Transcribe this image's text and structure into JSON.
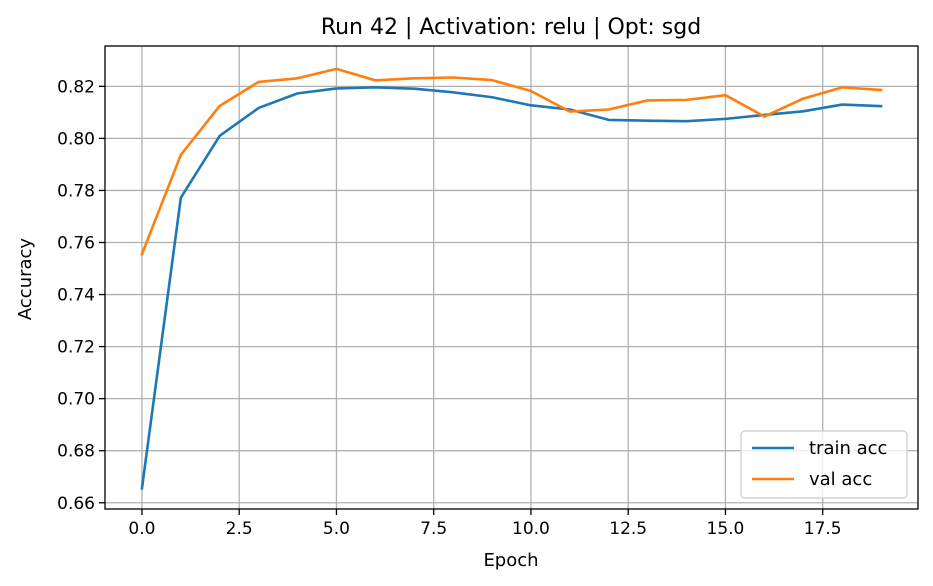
{
  "chart_data": {
    "type": "line",
    "title": "Run 42 | Activation: relu | Opt: sgd",
    "xlabel": "Epoch",
    "ylabel": "Accuracy",
    "xlim": [
      -0.95,
      19.95
    ],
    "ylim": [
      0.6576,
      0.8355
    ],
    "xticks": [
      0.0,
      2.5,
      5.0,
      7.5,
      10.0,
      12.5,
      15.0,
      17.5
    ],
    "xtick_labels": [
      "0.0",
      "2.5",
      "5.0",
      "7.5",
      "10.0",
      "12.5",
      "15.0",
      "17.5"
    ],
    "yticks": [
      0.66,
      0.68,
      0.7,
      0.72,
      0.74,
      0.76,
      0.78,
      0.8,
      0.82
    ],
    "ytick_labels": [
      "0.66",
      "0.68",
      "0.70",
      "0.72",
      "0.74",
      "0.76",
      "0.78",
      "0.80",
      "0.82"
    ],
    "grid": true,
    "legend_position": "bottom-right",
    "x": [
      0,
      1,
      2,
      3,
      4,
      5,
      6,
      7,
      8,
      9,
      10,
      11,
      12,
      13,
      14,
      15,
      16,
      17,
      18,
      19
    ],
    "series": [
      {
        "name": "train acc",
        "color": "#1f77b4",
        "values": [
          0.6655,
          0.7772,
          0.801,
          0.8117,
          0.8173,
          0.8192,
          0.8196,
          0.8191,
          0.8177,
          0.8158,
          0.8127,
          0.8111,
          0.8071,
          0.8068,
          0.8066,
          0.8075,
          0.809,
          0.8104,
          0.813,
          0.8124
        ]
      },
      {
        "name": "val acc",
        "color": "#ff7f0e",
        "values": [
          0.7555,
          0.7937,
          0.8125,
          0.8217,
          0.8231,
          0.8267,
          0.8223,
          0.8231,
          0.8234,
          0.8224,
          0.8182,
          0.8103,
          0.8111,
          0.8146,
          0.8148,
          0.8166,
          0.8084,
          0.8153,
          0.8196,
          0.8186
        ]
      }
    ]
  }
}
